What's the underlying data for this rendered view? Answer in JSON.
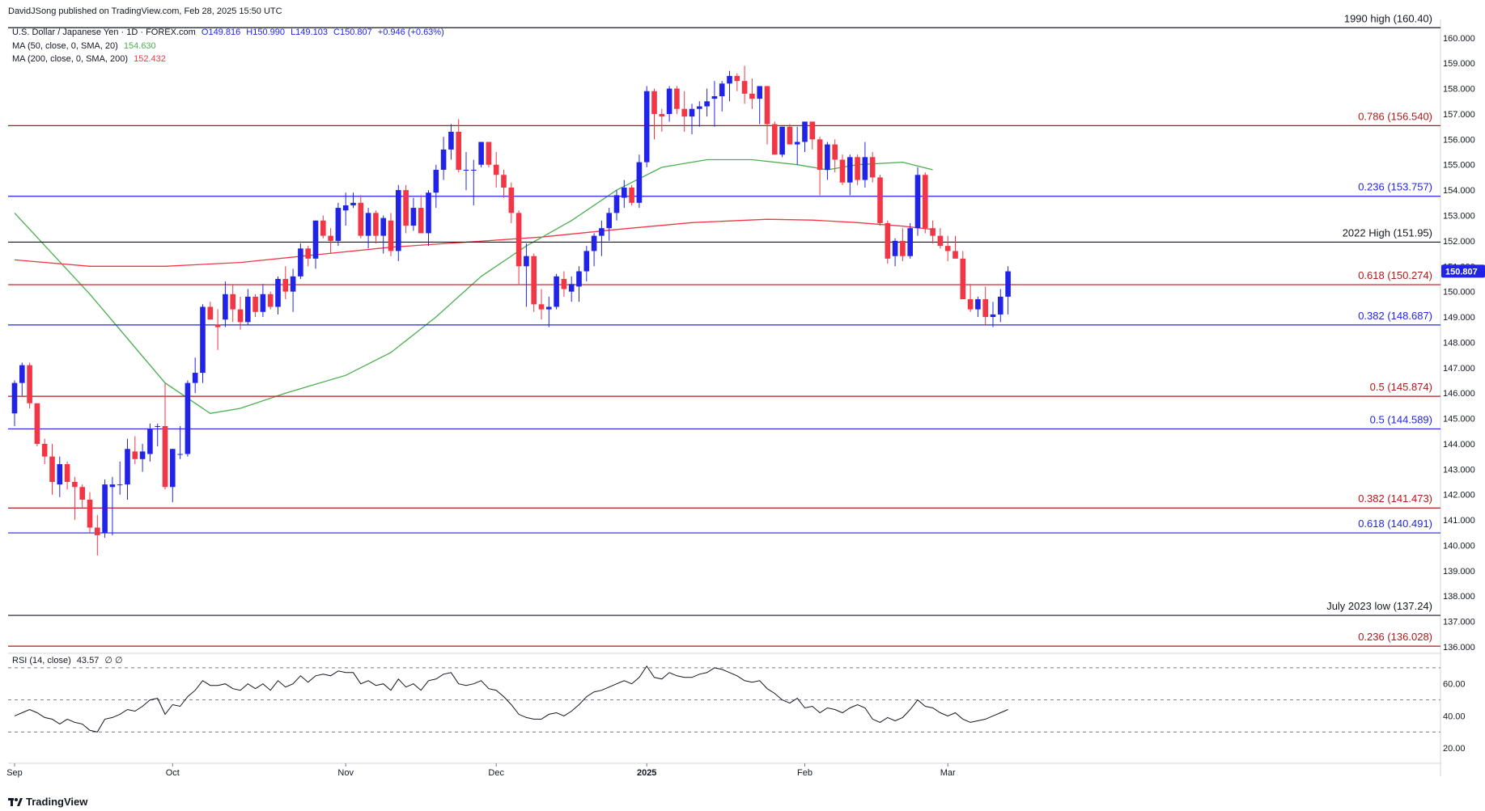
{
  "header": {
    "publisher_line": "DavidJSong published on TradingView.com, Feb 28, 2025 15:50 UTC"
  },
  "legend": {
    "symbol": "U.S. Dollar / Japanese Yen · 1D · FOREX.com",
    "open": "O149.816",
    "high": "H150.990",
    "low": "L149.103",
    "close": "C150.807",
    "change": "+0.946 (+0.63%)",
    "ma50_label": "MA (50, close, 0, SMA, 20)",
    "ma50_value": "154.630",
    "ma200_label": "MA (200, close, 0, SMA, 200)",
    "ma200_value": "152.432"
  },
  "rsi_legend": {
    "label": "RSI (14, close)",
    "value": "43.57",
    "extra": "∅ ∅"
  },
  "footer": {
    "brand": "TradingView"
  },
  "colors": {
    "up": "#2124e8",
    "down": "#f23645",
    "ma50": "#4caf50",
    "ma200": "#f23645",
    "level_blue": "#2124e8",
    "level_red": "#b21919",
    "level_black": "#131722",
    "rsi_line": "#131722",
    "last_price_bg": "#2124e8"
  },
  "chart_data": {
    "type": "candlestick",
    "price_axis": {
      "range": [
        136.0,
        160.6
      ],
      "ticks": [
        "160.000",
        "159.000",
        "158.000",
        "157.000",
        "156.000",
        "155.000",
        "154.000",
        "153.000",
        "152.000",
        "151.000",
        "150.000",
        "149.000",
        "148.000",
        "147.000",
        "146.000",
        "145.000",
        "144.000",
        "143.000",
        "142.000",
        "141.000",
        "140.000",
        "139.000",
        "138.000",
        "137.000",
        "136.000"
      ]
    },
    "time_axis": {
      "labels": [
        {
          "text": "Sep",
          "index": 0
        },
        {
          "text": "Oct",
          "index": 21
        },
        {
          "text": "Nov",
          "index": 44
        },
        {
          "text": "Dec",
          "index": 64
        },
        {
          "text": "2025",
          "index": 84
        },
        {
          "text": "Feb",
          "index": 105
        },
        {
          "text": "Mar",
          "index": 124
        }
      ]
    },
    "levels": [
      {
        "label": "1990 high (160.40)",
        "value": 160.4,
        "color": "black"
      },
      {
        "label": "0.786 (156.540)",
        "value": 156.54,
        "color": "red"
      },
      {
        "label": "0.236 (153.757)",
        "value": 153.757,
        "color": "blue"
      },
      {
        "label": "2022 High (151.95)",
        "value": 151.95,
        "color": "black"
      },
      {
        "label": "0.618 (150.274)",
        "value": 150.274,
        "color": "red"
      },
      {
        "label": "0.382 (148.687)",
        "value": 148.687,
        "color": "blue"
      },
      {
        "label": "0.5 (145.874)",
        "value": 145.874,
        "color": "red"
      },
      {
        "label": "0.5 (144.589)",
        "value": 144.589,
        "color": "blue"
      },
      {
        "label": "0.382 (141.473)",
        "value": 141.473,
        "color": "red"
      },
      {
        "label": "0.618 (140.491)",
        "value": 140.491,
        "color": "blue"
      },
      {
        "label": "July 2023 low (137.24)",
        "value": 137.24,
        "color": "black"
      },
      {
        "label": "0.236 (136.028)",
        "value": 136.028,
        "color": "red"
      }
    ],
    "last_price": "150.807",
    "candles": [
      [
        145.2,
        146.5,
        144.7,
        146.4
      ],
      [
        146.4,
        147.2,
        145.9,
        147.1
      ],
      [
        147.1,
        147.2,
        145.4,
        145.6
      ],
      [
        145.6,
        145.6,
        143.9,
        144.0
      ],
      [
        144.0,
        144.2,
        143.2,
        143.5
      ],
      [
        143.5,
        144.0,
        142.0,
        142.5
      ],
      [
        142.4,
        143.5,
        141.9,
        143.2
      ],
      [
        143.2,
        143.3,
        142.2,
        142.5
      ],
      [
        142.5,
        142.7,
        141.0,
        142.3
      ],
      [
        142.3,
        142.4,
        141.5,
        141.8
      ],
      [
        141.8,
        142.1,
        140.5,
        140.7
      ],
      [
        140.7,
        141.2,
        139.6,
        140.4
      ],
      [
        140.5,
        142.6,
        140.3,
        142.4
      ],
      [
        142.3,
        142.7,
        140.4,
        142.4
      ],
      [
        142.4,
        143.3,
        142.0,
        142.4
      ],
      [
        142.4,
        144.2,
        141.8,
        143.8
      ],
      [
        143.7,
        144.3,
        143.2,
        143.4
      ],
      [
        143.4,
        144.0,
        142.9,
        143.7
      ],
      [
        143.6,
        144.8,
        143.3,
        144.6
      ],
      [
        144.7,
        144.8,
        143.9,
        144.7
      ],
      [
        144.7,
        146.4,
        142.2,
        142.3
      ],
      [
        142.3,
        143.8,
        141.7,
        143.8
      ],
      [
        143.6,
        144.7,
        143.4,
        143.6
      ],
      [
        143.6,
        146.5,
        143.5,
        146.4
      ],
      [
        146.4,
        147.4,
        146.0,
        146.8
      ],
      [
        146.8,
        149.5,
        146.4,
        149.4
      ],
      [
        149.4,
        149.6,
        148.9,
        148.9
      ],
      [
        148.7,
        149.3,
        147.7,
        148.6
      ],
      [
        148.9,
        150.4,
        148.6,
        149.9
      ],
      [
        149.9,
        150.3,
        148.8,
        149.3
      ],
      [
        149.3,
        149.8,
        148.5,
        148.8
      ],
      [
        148.8,
        150.1,
        148.7,
        149.8
      ],
      [
        149.8,
        149.9,
        149.0,
        149.2
      ],
      [
        149.2,
        150.3,
        149.0,
        149.9
      ],
      [
        149.9,
        150.0,
        149.3,
        149.4
      ],
      [
        149.4,
        150.6,
        149.1,
        150.5
      ],
      [
        150.5,
        151.0,
        149.7,
        150.0
      ],
      [
        150.0,
        150.9,
        149.2,
        150.6
      ],
      [
        150.6,
        151.9,
        150.5,
        151.7
      ],
      [
        151.7,
        151.8,
        151.0,
        151.3
      ],
      [
        151.3,
        152.8,
        150.9,
        152.8
      ],
      [
        152.8,
        153.0,
        152.1,
        152.2
      ],
      [
        152.2,
        152.5,
        151.5,
        152.0
      ],
      [
        152.0,
        153.5,
        151.8,
        153.3
      ],
      [
        153.2,
        153.9,
        152.6,
        153.4
      ],
      [
        153.4,
        153.9,
        153.3,
        153.5
      ],
      [
        153.5,
        153.8,
        152.1,
        152.2
      ],
      [
        152.2,
        153.3,
        151.7,
        153.1
      ],
      [
        153.1,
        153.2,
        151.9,
        152.2
      ],
      [
        152.2,
        153.0,
        151.5,
        152.9
      ],
      [
        152.8,
        153.1,
        151.4,
        151.6
      ],
      [
        151.6,
        154.2,
        151.2,
        154.0
      ],
      [
        154.0,
        154.2,
        152.3,
        152.6
      ],
      [
        152.6,
        153.7,
        152.4,
        153.3
      ],
      [
        153.3,
        153.8,
        152.3,
        152.3
      ],
      [
        152.3,
        154.0,
        151.8,
        153.9
      ],
      [
        153.9,
        155.0,
        153.3,
        154.8
      ],
      [
        154.8,
        156.1,
        154.4,
        155.6
      ],
      [
        155.6,
        156.6,
        155.2,
        156.3
      ],
      [
        156.3,
        156.8,
        154.7,
        154.8
      ],
      [
        154.8,
        155.5,
        154.0,
        154.8
      ],
      [
        154.8,
        155.2,
        153.4,
        154.8
      ],
      [
        155.0,
        155.9,
        154.9,
        155.9
      ],
      [
        155.9,
        155.9,
        154.9,
        155.0
      ],
      [
        155.0,
        155.5,
        154.1,
        154.6
      ],
      [
        154.6,
        154.8,
        153.7,
        154.1
      ],
      [
        154.1,
        154.3,
        152.7,
        153.1
      ],
      [
        153.1,
        153.2,
        150.3,
        151.0
      ],
      [
        151.0,
        151.9,
        149.4,
        151.4
      ],
      [
        151.4,
        151.5,
        149.2,
        149.5
      ],
      [
        149.5,
        150.1,
        148.9,
        149.3
      ],
      [
        149.3,
        149.8,
        148.6,
        149.4
      ],
      [
        149.4,
        150.7,
        149.3,
        150.6
      ],
      [
        150.5,
        150.8,
        149.8,
        150.1
      ],
      [
        150.0,
        150.6,
        149.6,
        150.3
      ],
      [
        150.2,
        151.0,
        149.6,
        150.8
      ],
      [
        150.8,
        151.8,
        150.4,
        151.6
      ],
      [
        151.6,
        152.3,
        151.0,
        152.2
      ],
      [
        152.2,
        152.8,
        151.4,
        152.5
      ],
      [
        152.5,
        153.3,
        152.0,
        153.1
      ],
      [
        153.1,
        154.0,
        152.8,
        153.8
      ],
      [
        153.7,
        154.4,
        153.3,
        154.1
      ],
      [
        154.1,
        154.2,
        153.4,
        153.5
      ],
      [
        153.5,
        155.4,
        153.3,
        155.1
      ],
      [
        155.1,
        158.1,
        154.9,
        157.9
      ],
      [
        157.9,
        158.0,
        156.0,
        157.0
      ],
      [
        157.0,
        157.2,
        156.3,
        156.9
      ],
      [
        157.0,
        158.1,
        156.7,
        158.0
      ],
      [
        158.0,
        158.1,
        157.0,
        157.2
      ],
      [
        157.2,
        157.9,
        156.3,
        156.9
      ],
      [
        156.9,
        157.4,
        156.2,
        157.2
      ],
      [
        157.2,
        157.5,
        156.5,
        157.3
      ],
      [
        157.3,
        158.0,
        156.9,
        157.5
      ],
      [
        157.6,
        158.3,
        156.5,
        157.7
      ],
      [
        157.7,
        158.3,
        157.1,
        158.2
      ],
      [
        158.2,
        158.7,
        157.5,
        158.5
      ],
      [
        158.5,
        158.6,
        157.9,
        158.3
      ],
      [
        158.3,
        158.9,
        157.4,
        157.8
      ],
      [
        157.8,
        158.4,
        157.2,
        157.6
      ],
      [
        157.6,
        158.1,
        156.6,
        158.1
      ],
      [
        158.1,
        158.1,
        155.8,
        156.6
      ],
      [
        156.6,
        156.7,
        155.4,
        155.4
      ],
      [
        155.4,
        156.5,
        155.3,
        156.5
      ],
      [
        156.5,
        156.6,
        155.8,
        155.8
      ],
      [
        155.8,
        156.5,
        155.0,
        155.9
      ],
      [
        155.9,
        156.7,
        155.5,
        156.7
      ],
      [
        156.7,
        156.7,
        155.6,
        156.0
      ],
      [
        156.0,
        156.1,
        153.8,
        154.8
      ],
      [
        154.8,
        155.9,
        154.4,
        155.8
      ],
      [
        155.8,
        156.0,
        154.7,
        155.2
      ],
      [
        155.2,
        155.4,
        154.2,
        154.3
      ],
      [
        154.3,
        155.4,
        153.8,
        155.3
      ],
      [
        155.3,
        155.4,
        154.2,
        154.4
      ],
      [
        154.4,
        155.9,
        154.1,
        155.3
      ],
      [
        155.3,
        155.5,
        154.3,
        154.5
      ],
      [
        154.5,
        154.6,
        152.6,
        152.7
      ],
      [
        152.7,
        152.8,
        151.1,
        151.3
      ],
      [
        151.4,
        152.1,
        151.0,
        152.0
      ],
      [
        152.0,
        152.5,
        151.2,
        151.4
      ],
      [
        151.4,
        152.7,
        151.3,
        152.5
      ],
      [
        152.5,
        154.9,
        152.2,
        154.6
      ],
      [
        154.6,
        154.7,
        152.3,
        152.5
      ],
      [
        152.5,
        152.8,
        151.9,
        152.2
      ],
      [
        152.2,
        152.5,
        151.7,
        151.8
      ],
      [
        151.8,
        152.2,
        151.2,
        151.6
      ],
      [
        151.6,
        152.2,
        151.4,
        151.3
      ],
      [
        151.3,
        151.6,
        149.8,
        149.7
      ],
      [
        149.7,
        150.3,
        149.2,
        149.3
      ],
      [
        149.3,
        149.8,
        149.0,
        149.7
      ],
      [
        149.7,
        150.2,
        148.7,
        149.0
      ],
      [
        149.0,
        149.6,
        148.6,
        149.1
      ],
      [
        149.1,
        150.1,
        148.8,
        149.8
      ],
      [
        149.8,
        151.0,
        149.1,
        150.8
      ]
    ],
    "ma50": [
      [
        0,
        153.1
      ],
      [
        10,
        149.9
      ],
      [
        20,
        146.4
      ],
      [
        26,
        145.2
      ],
      [
        30,
        145.4
      ],
      [
        36,
        146.0
      ],
      [
        44,
        146.7
      ],
      [
        50,
        147.6
      ],
      [
        56,
        149.0
      ],
      [
        62,
        150.6
      ],
      [
        68,
        151.8
      ],
      [
        74,
        152.8
      ],
      [
        80,
        154.0
      ],
      [
        86,
        154.9
      ],
      [
        92,
        155.2
      ],
      [
        98,
        155.2
      ],
      [
        104,
        155.0
      ],
      [
        108,
        154.8
      ],
      [
        112,
        155.0
      ],
      [
        118,
        155.1
      ],
      [
        122,
        154.8
      ]
    ],
    "ma200": [
      [
        0,
        151.25
      ],
      [
        10,
        151.0
      ],
      [
        20,
        151.0
      ],
      [
        30,
        151.15
      ],
      [
        40,
        151.45
      ],
      [
        50,
        151.75
      ],
      [
        60,
        151.95
      ],
      [
        70,
        152.15
      ],
      [
        80,
        152.45
      ],
      [
        90,
        152.72
      ],
      [
        100,
        152.85
      ],
      [
        106,
        152.82
      ],
      [
        112,
        152.72
      ],
      [
        118,
        152.58
      ],
      [
        122,
        152.45
      ]
    ],
    "rsi": {
      "range": [
        10,
        79
      ],
      "ticks": [
        "60.00",
        "40.00",
        "20.00"
      ],
      "levels": [
        70,
        50,
        30
      ],
      "values": [
        40,
        42,
        44,
        42,
        39,
        38,
        35,
        38,
        36,
        35,
        31,
        30,
        38,
        39,
        41,
        44,
        43,
        46,
        50,
        51,
        41,
        47,
        46,
        52,
        56,
        62,
        59,
        59,
        60,
        57,
        56,
        60,
        57,
        60,
        56,
        62,
        58,
        60,
        65,
        61,
        65,
        66,
        65,
        68,
        67,
        67,
        60,
        62,
        59,
        60,
        56,
        63,
        58,
        60,
        56,
        62,
        63,
        66,
        67,
        60,
        59,
        60,
        62,
        57,
        56,
        52,
        47,
        41,
        39,
        38,
        38,
        41,
        42,
        40,
        43,
        47,
        52,
        55,
        56,
        58,
        60,
        62,
        60,
        64,
        71,
        64,
        63,
        67,
        65,
        64,
        64,
        66,
        67,
        70,
        69,
        67,
        65,
        62,
        61,
        62,
        57,
        54,
        50,
        48,
        51,
        45,
        46,
        42,
        45,
        44,
        42,
        45,
        47,
        45,
        38,
        36,
        39,
        37,
        39,
        44,
        50,
        46,
        45,
        42,
        40,
        42,
        38,
        36,
        37,
        38,
        40,
        42,
        44
      ]
    }
  }
}
